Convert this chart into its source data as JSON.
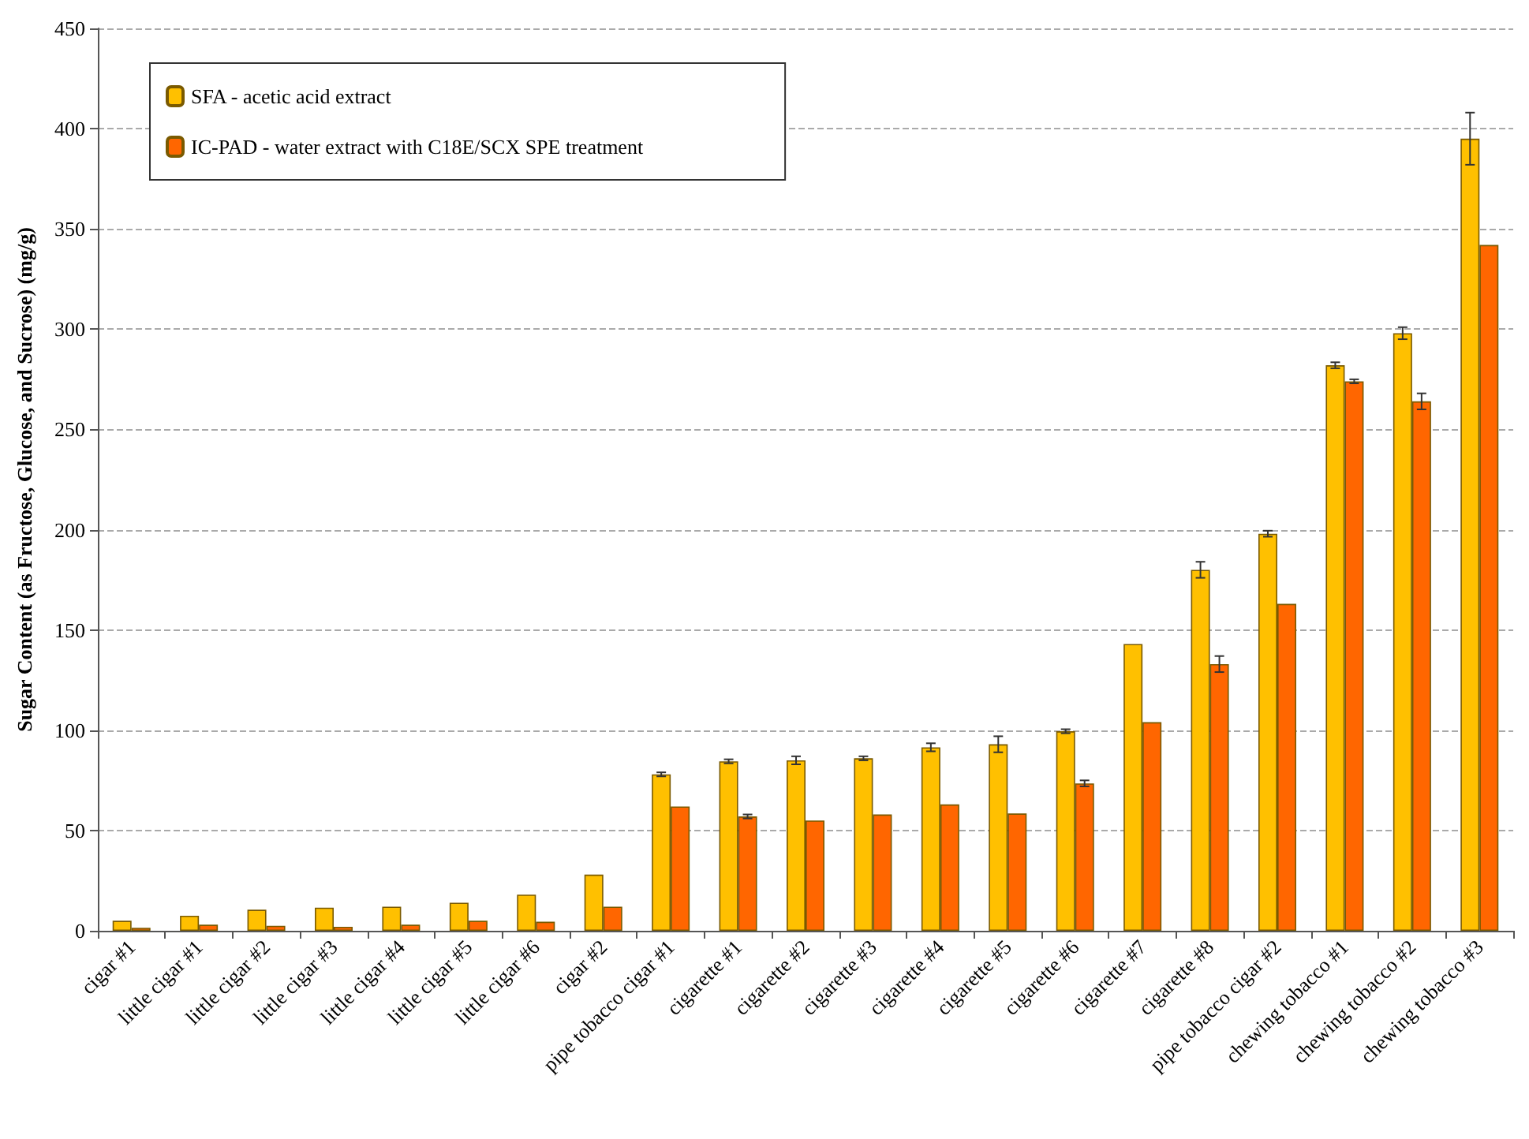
{
  "chart_data": {
    "type": "bar",
    "ylabel": "Sugar Content (as Fructose, Glucose, and Sucrose) (mg/g)",
    "categories": [
      "cigar #1",
      "little cigar #1",
      "little cigar #2",
      "little cigar #3",
      "little cigar #4",
      "little cigar #5",
      "little cigar #6",
      "cigar #2",
      "pipe tobacco cigar #1",
      "cigarette #1",
      "cigarette #2",
      "cigarette #3",
      "cigarette #4",
      "cigarette #5",
      "cigarette #6",
      "cigarette #7",
      "cigarette #8",
      "pipe tobacco cigar #2",
      "chewing tobacco #1",
      "chewing tobacco #2",
      "chewing tobacco #3"
    ],
    "series": [
      {
        "name": "SFA - acetic acid extract",
        "color": "#ffc000",
        "values": [
          5,
          7.5,
          10.5,
          11.5,
          12,
          14,
          18,
          28,
          78,
          84.5,
          85,
          86,
          91.5,
          93,
          99.5,
          143,
          180,
          198,
          282,
          298,
          395
        ],
        "errors": [
          null,
          null,
          null,
          null,
          null,
          null,
          null,
          null,
          1,
          1,
          2,
          1,
          2,
          4,
          1,
          null,
          4,
          1.5,
          1.5,
          3,
          13
        ]
      },
      {
        "name": "IC-PAD - water extract with C18E/SCX SPE treatment",
        "color": "#ff6600",
        "values": [
          1.5,
          3,
          2.5,
          2,
          3,
          5,
          4.5,
          12,
          62,
          57,
          55,
          58,
          63,
          58.5,
          73.5,
          104,
          133,
          163,
          274,
          264,
          342
        ],
        "errors": [
          null,
          null,
          null,
          null,
          null,
          null,
          null,
          null,
          null,
          1,
          null,
          null,
          null,
          null,
          1.5,
          null,
          4,
          null,
          1,
          4,
          null
        ]
      }
    ],
    "ylim": [
      0,
      450
    ],
    "yticks": [
      0,
      50,
      100,
      150,
      200,
      250,
      300,
      350,
      400,
      450
    ],
    "grid": "y",
    "legend": "top left"
  }
}
